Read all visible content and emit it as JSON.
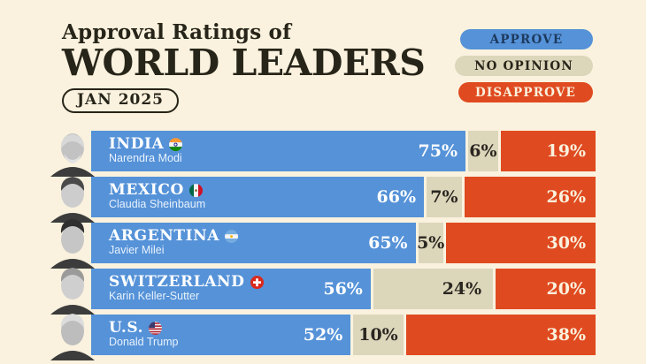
{
  "title": {
    "line1": "Approval Ratings of",
    "line2": "WORLD LEADERS",
    "date_badge": "JAN 2025"
  },
  "legend": {
    "approve": {
      "label": "APPROVE",
      "color": "#5592d8",
      "text_color": "#1d3a5e"
    },
    "no_opinion": {
      "label": "NO OPINION",
      "color": "#dcd6bb",
      "text_color": "#272419"
    },
    "disapprove": {
      "label": "DISAPPROVE",
      "color": "#e04a20",
      "text_color": "#f9f1dd"
    }
  },
  "colors": {
    "background": "#faf2de",
    "ink": "#272419",
    "approve_bar": "#5592d8",
    "no_opinion_bar": "#dcd6bb",
    "disapprove_bar": "#e04a20"
  },
  "chart_data": {
    "type": "bar",
    "orientation": "horizontal",
    "stacked": true,
    "title": "Approval Ratings of WORLD LEADERS",
    "subtitle_badge": "JAN 2025",
    "unit": "%",
    "xlim": [
      0,
      100
    ],
    "grid": false,
    "legend_position": "top-right",
    "categories": [
      "INDIA — Narendra Modi",
      "MEXICO — Claudia Sheinbaum",
      "ARGENTINA — Javier Milei",
      "SWITZERLAND — Karin Keller-Sutter",
      "U.S. — Donald Trump"
    ],
    "series": [
      {
        "name": "Approve",
        "color": "#5592d8",
        "values": [
          75,
          66,
          65,
          56,
          52
        ]
      },
      {
        "name": "No Opinion",
        "color": "#dcd6bb",
        "values": [
          6,
          7,
          5,
          24,
          10
        ]
      },
      {
        "name": "Disapprove",
        "color": "#e04a20",
        "values": [
          19,
          26,
          30,
          20,
          38
        ]
      }
    ]
  },
  "rows": [
    {
      "country": "INDIA",
      "leader": "Narendra Modi",
      "flag": "india-flag",
      "photo": "narendra-modi-photo",
      "approve": 75,
      "no_opinion": 6,
      "disapprove": 19,
      "approve_label": "75%",
      "no_opinion_label": "6%",
      "disapprove_label": "19%"
    },
    {
      "country": "MEXICO",
      "leader": "Claudia Sheinbaum",
      "flag": "mexico-flag",
      "photo": "claudia-sheinbaum-photo",
      "approve": 66,
      "no_opinion": 7,
      "disapprove": 26,
      "approve_label": "66%",
      "no_opinion_label": "7%",
      "disapprove_label": "26%"
    },
    {
      "country": "ARGENTINA",
      "leader": "Javier Milei",
      "flag": "argentina-flag",
      "photo": "javier-milei-photo",
      "approve": 65,
      "no_opinion": 5,
      "disapprove": 30,
      "approve_label": "65%",
      "no_opinion_label": "5%",
      "disapprove_label": "30%"
    },
    {
      "country": "SWITZERLAND",
      "leader": "Karin Keller-Sutter",
      "flag": "switzerland-flag",
      "photo": "karin-keller-sutter-photo",
      "approve": 56,
      "no_opinion": 24,
      "disapprove": 20,
      "approve_label": "56%",
      "no_opinion_label": "24%",
      "disapprove_label": "20%"
    },
    {
      "country": "U.S.",
      "leader": "Donald Trump",
      "flag": "us-flag",
      "photo": "donald-trump-photo",
      "approve": 52,
      "no_opinion": 10,
      "disapprove": 38,
      "approve_label": "52%",
      "no_opinion_label": "10%",
      "disapprove_label": "38%"
    }
  ]
}
